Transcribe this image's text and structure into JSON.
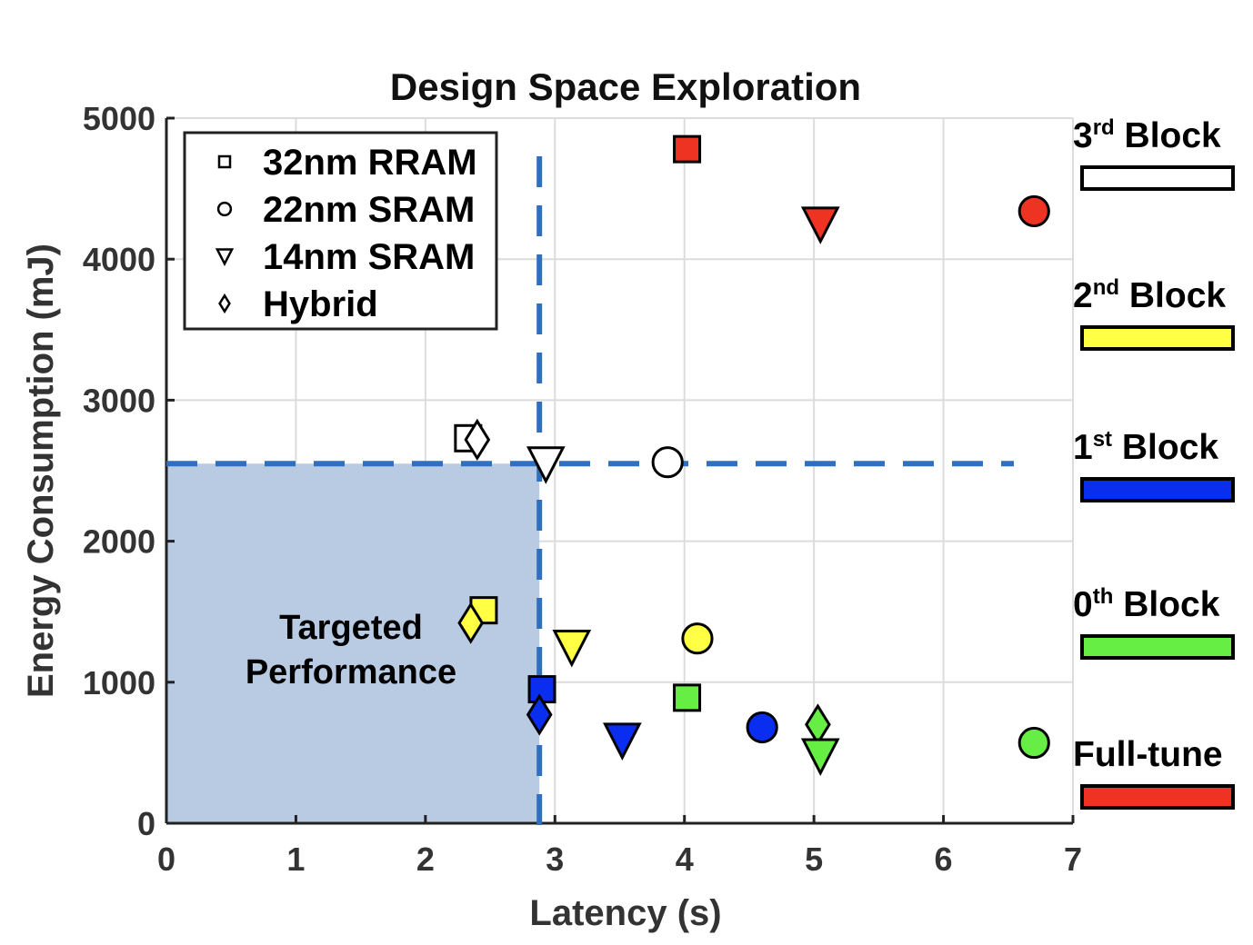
{
  "chart_data": {
    "type": "scatter",
    "title": "Design Space Exploration",
    "xlabel": "Latency (s)",
    "ylabel": "Energy Consumption (mJ)",
    "xlim": [
      0,
      7
    ],
    "ylim": [
      0,
      5000
    ],
    "xticks": [
      0,
      1,
      2,
      3,
      4,
      5,
      6,
      7
    ],
    "yticks": [
      0,
      1000,
      2000,
      3000,
      4000,
      5000
    ],
    "grid": true,
    "legend": {
      "placement": "top-left",
      "entries": [
        {
          "marker": "square",
          "label": "32nm RRAM"
        },
        {
          "marker": "circle",
          "label": "22nm SRAM"
        },
        {
          "marker": "triangle-down",
          "label": "14nm SRAM"
        },
        {
          "marker": "diamond",
          "label": "Hybrid"
        }
      ]
    },
    "blocks": [
      {
        "key": "third",
        "main": "3",
        "sup": "rd",
        "rest": " Block",
        "color": "#ffffff"
      },
      {
        "key": "second",
        "main": "2",
        "sup": "nd",
        "rest": " Block",
        "color": "#ffff44"
      },
      {
        "key": "first",
        "main": "1",
        "sup": "st",
        "rest": " Block",
        "color": "#0a2ef0"
      },
      {
        "key": "zeroth",
        "main": "0",
        "sup": "th",
        "rest": " Block",
        "color": "#66ee44"
      },
      {
        "key": "full",
        "main": "Full-tune",
        "sup": "",
        "rest": "",
        "color": "#ee3322"
      }
    ],
    "series": [
      {
        "block": "full",
        "color": "#ee3322",
        "points": [
          {
            "marker": "square",
            "x": 4.02,
            "y": 4780
          },
          {
            "marker": "triangle-down",
            "x": 5.05,
            "y": 4250
          },
          {
            "marker": "circle",
            "x": 6.7,
            "y": 4340
          }
        ]
      },
      {
        "block": "third",
        "color": "#ffffff",
        "points": [
          {
            "marker": "square",
            "x": 2.33,
            "y": 2730
          },
          {
            "marker": "diamond",
            "x": 2.4,
            "y": 2720
          },
          {
            "marker": "triangle-down",
            "x": 2.93,
            "y": 2550
          },
          {
            "marker": "circle",
            "x": 3.87,
            "y": 2560
          }
        ]
      },
      {
        "block": "second",
        "color": "#ffff44",
        "points": [
          {
            "marker": "square",
            "x": 2.45,
            "y": 1510
          },
          {
            "marker": "diamond",
            "x": 2.35,
            "y": 1420
          },
          {
            "marker": "triangle-down",
            "x": 3.13,
            "y": 1250
          },
          {
            "marker": "circle",
            "x": 4.1,
            "y": 1310
          }
        ]
      },
      {
        "block": "first",
        "color": "#0a2ef0",
        "points": [
          {
            "marker": "square",
            "x": 2.9,
            "y": 950
          },
          {
            "marker": "diamond",
            "x": 2.88,
            "y": 770
          },
          {
            "marker": "triangle-down",
            "x": 3.52,
            "y": 590
          },
          {
            "marker": "circle",
            "x": 4.6,
            "y": 680
          }
        ]
      },
      {
        "block": "zeroth",
        "color": "#66ee44",
        "points": [
          {
            "marker": "square",
            "x": 4.02,
            "y": 890
          },
          {
            "marker": "diamond",
            "x": 5.03,
            "y": 700
          },
          {
            "marker": "triangle-down",
            "x": 5.05,
            "y": 480
          },
          {
            "marker": "circle",
            "x": 6.7,
            "y": 570
          }
        ]
      }
    ],
    "target": {
      "x": 2.88,
      "y": 2550,
      "label_line1": "Targeted",
      "label_line2": "Performance",
      "region_color": "#b8cbe3",
      "line_color": "#2f6fc0"
    }
  }
}
